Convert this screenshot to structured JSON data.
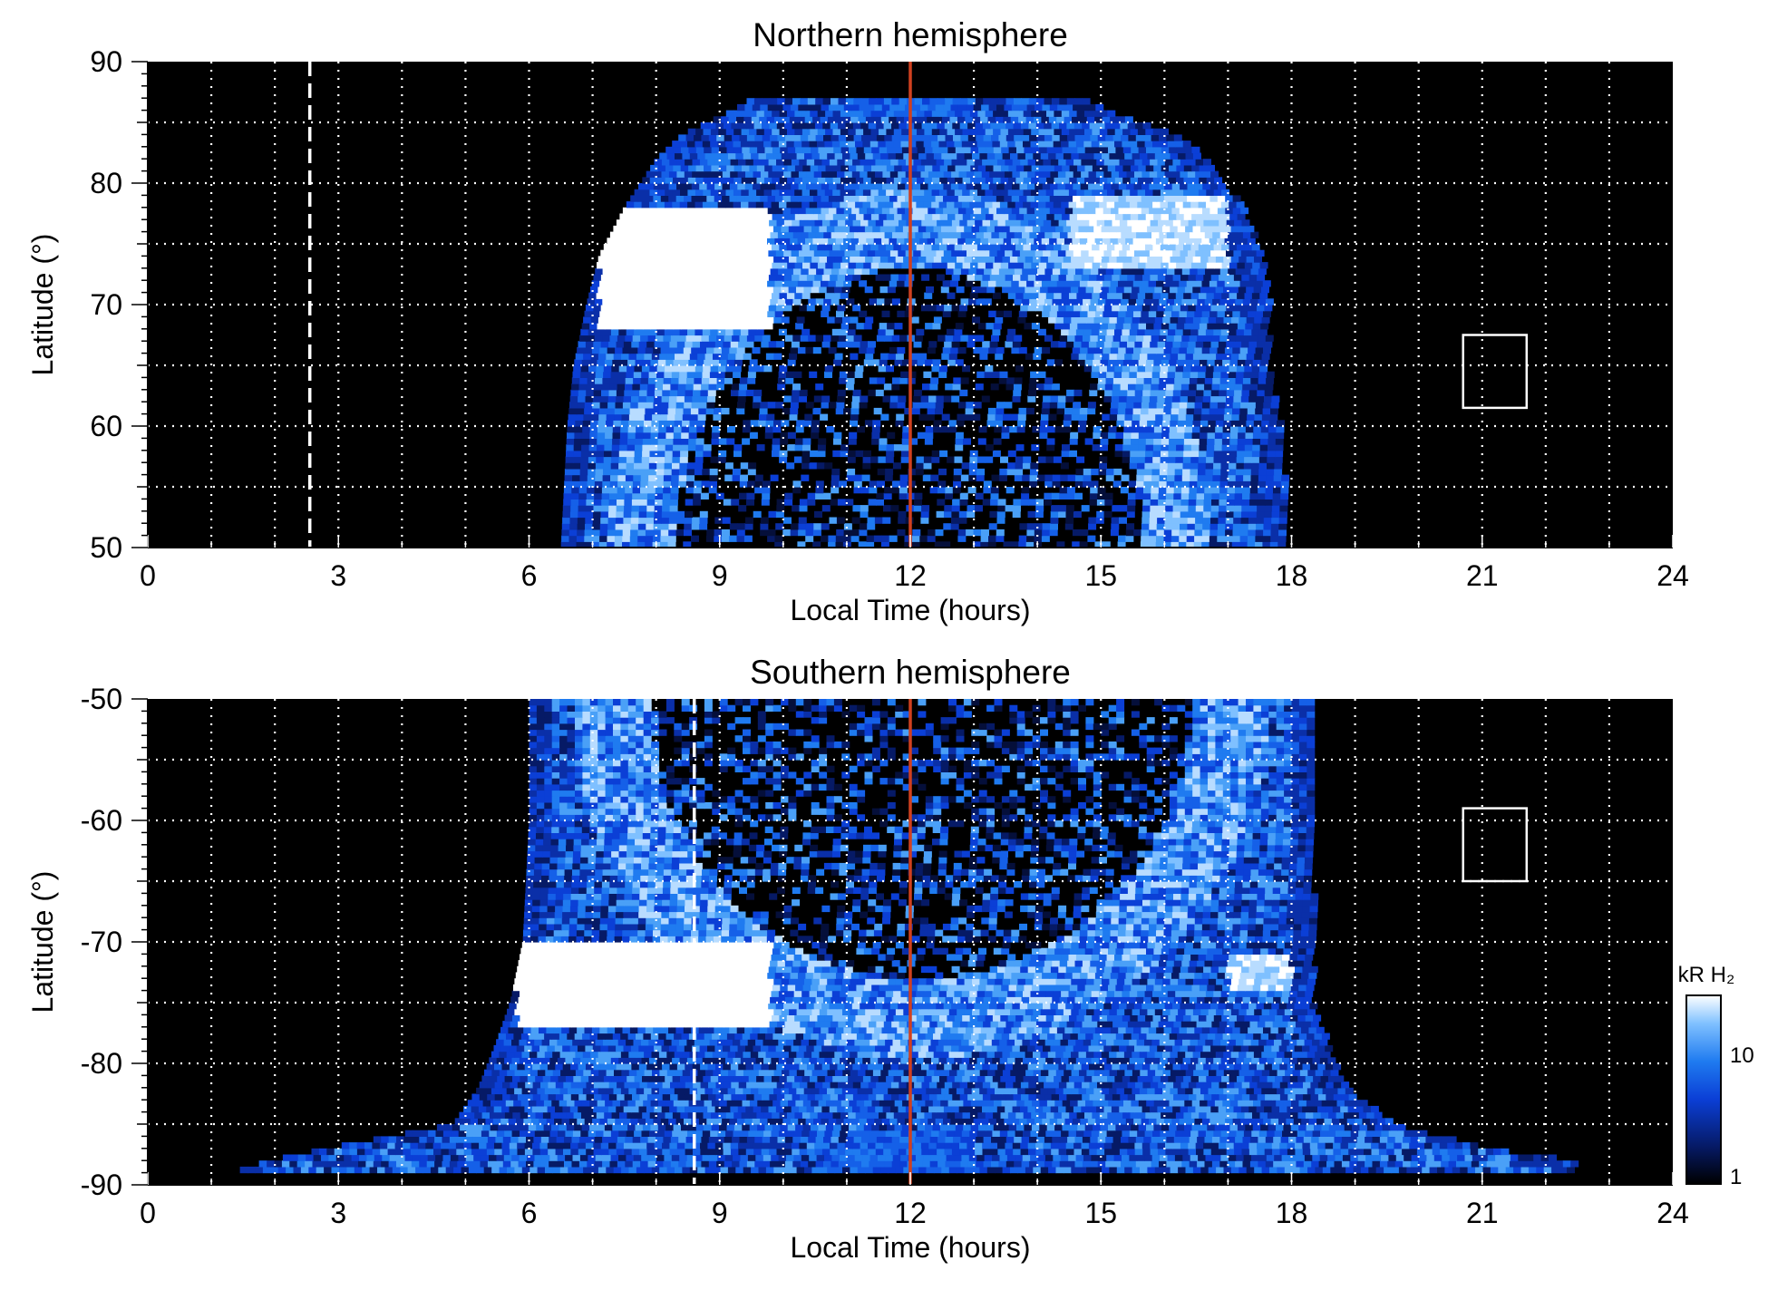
{
  "chart_data": [
    {
      "type": "heatmap",
      "title": "Northern hemisphere",
      "xlabel": "Local Time (hours)",
      "ylabel": "Latitude (°)",
      "xlim": [
        0,
        24
      ],
      "ylim": [
        50,
        90
      ],
      "xticks": [
        0,
        3,
        6,
        9,
        12,
        15,
        18,
        21,
        24
      ],
      "xtick_labels": [
        "0",
        "3",
        "6",
        "9",
        "12",
        "15",
        "18",
        "21",
        "24"
      ],
      "yticks": [
        50,
        60,
        70,
        80,
        90
      ],
      "ytick_labels": [
        "50",
        "60",
        "70",
        "80",
        "90"
      ],
      "grid": true,
      "grid_x_step": 1,
      "grid_y_step": 5,
      "noon_line_x": 12,
      "noon_line_color": "#d0401f",
      "dashed_line_x": 2.55,
      "box": {
        "x0": 20.7,
        "x1": 21.7,
        "y0": 61.5,
        "y1": 67.5
      },
      "coverage_edges": [
        [
          50,
          6.5,
          17.9
        ],
        [
          60,
          6.6,
          17.8
        ],
        [
          65,
          6.7,
          17.6
        ],
        [
          70,
          6.9,
          17.6
        ],
        [
          74,
          7.1,
          17.5
        ],
        [
          78,
          7.5,
          17.2
        ],
        [
          82,
          8.0,
          16.6
        ],
        [
          84,
          8.4,
          16.2
        ],
        [
          86,
          9.2,
          15.0
        ],
        [
          87,
          9.5,
          14.7
        ]
      ],
      "bright_regions": [
        {
          "x0": 7.1,
          "x1": 9.8,
          "y0": 68,
          "y1": 78,
          "level": "saturated"
        },
        {
          "x0": 14.5,
          "x1": 17.0,
          "y0": 73,
          "y1": 79,
          "level": "high"
        }
      ],
      "dark_interior": {
        "x0": 8.0,
        "x1": 16.0,
        "y0": 50,
        "y1": 75
      }
    },
    {
      "type": "heatmap",
      "title": "Southern hemisphere",
      "xlabel": "Local Time (hours)",
      "ylabel": "Latitude (°)",
      "xlim": [
        0,
        24
      ],
      "ylim": [
        -90,
        -50
      ],
      "xticks": [
        0,
        3,
        6,
        9,
        12,
        15,
        18,
        21,
        24
      ],
      "xtick_labels": [
        "0",
        "3",
        "6",
        "9",
        "12",
        "15",
        "18",
        "21",
        "24"
      ],
      "yticks": [
        -90,
        -80,
        -70,
        -60,
        -50
      ],
      "ytick_labels": [
        "-90",
        "-80",
        "-70",
        "-60",
        "-50"
      ],
      "grid": true,
      "grid_x_step": 1,
      "grid_y_step": 5,
      "noon_line_x": 12,
      "noon_line_color": "#d0401f",
      "dashed_line_x": 8.6,
      "box": {
        "x0": 20.7,
        "x1": 21.7,
        "y0": -65,
        "y1": -59
      },
      "coverage_edges": [
        [
          -50,
          6.0,
          18.3
        ],
        [
          -60,
          6.0,
          18.3
        ],
        [
          -70,
          5.9,
          18.3
        ],
        [
          -75,
          5.7,
          18.3
        ],
        [
          -78,
          5.5,
          18.5
        ],
        [
          -82,
          5.2,
          18.8
        ],
        [
          -85,
          4.8,
          19.6
        ],
        [
          -87,
          2.8,
          21.0
        ],
        [
          -88,
          1.9,
          22.4
        ],
        [
          -89,
          1.3,
          22.4
        ]
      ],
      "bright_regions": [
        {
          "x0": 5.8,
          "x1": 9.8,
          "y0": -77,
          "y1": -70,
          "level": "saturated"
        },
        {
          "x0": 17.0,
          "x1": 18.0,
          "y0": -74,
          "y1": -71,
          "level": "high"
        }
      ],
      "dark_interior": {
        "x0": 7.5,
        "x1": 16.8,
        "y0": -75,
        "y1": -50
      }
    }
  ],
  "colorbar": {
    "label": "kR H₂",
    "ticks": [
      1,
      10
    ],
    "tick_labels": [
      "1",
      "10"
    ],
    "range": [
      1,
      30
    ],
    "scale": "log",
    "colors": [
      "#000000",
      "#061a66",
      "#0b3fd6",
      "#1f7bf0",
      "#7fc0ff",
      "#ffffff"
    ]
  }
}
